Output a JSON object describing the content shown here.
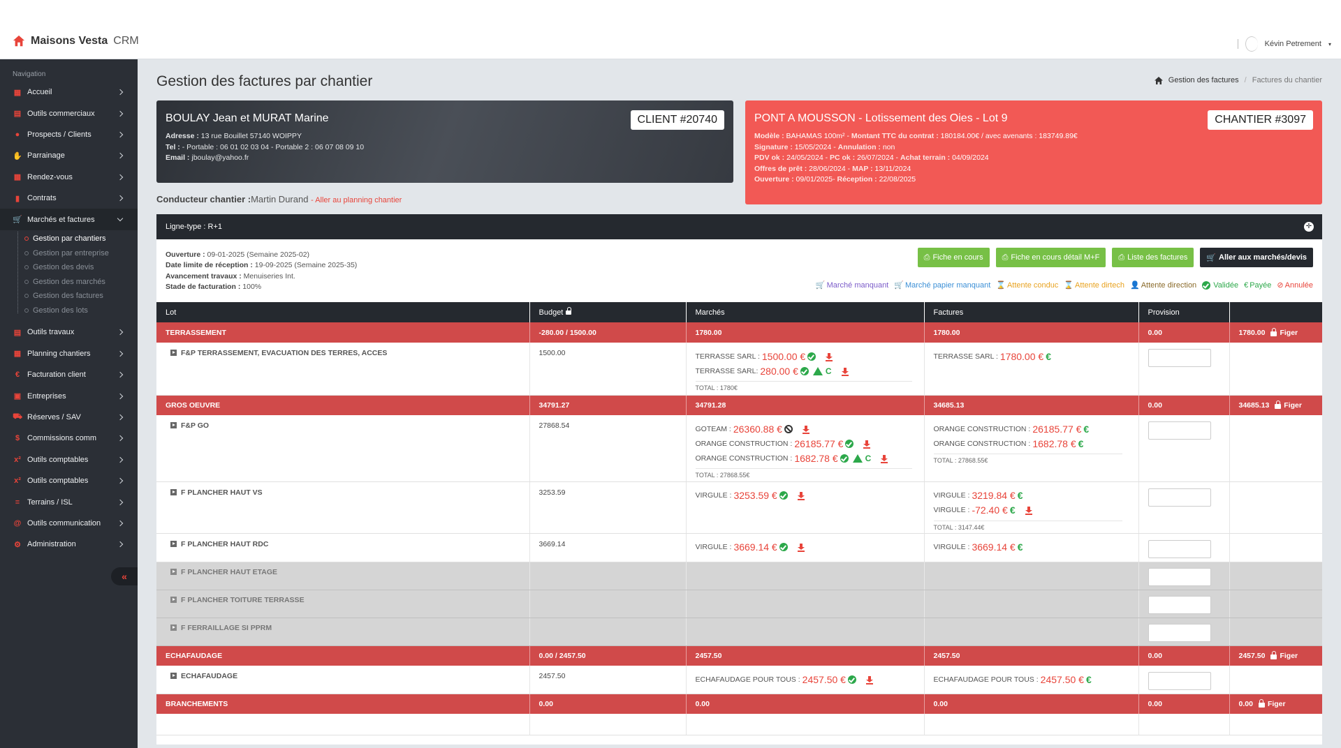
{
  "app": {
    "brand_bold": "Maisons Vesta",
    "brand_light": "CRM",
    "user_name": "Kévin Petrement"
  },
  "sidebar": {
    "heading": "Navigation",
    "items": [
      {
        "label": "Accueil",
        "icon": "grid-icon"
      },
      {
        "label": "Outils commerciaux",
        "icon": "calculator-icon"
      },
      {
        "label": "Prospects / Clients",
        "icon": "user-icon"
      },
      {
        "label": "Parrainage",
        "icon": "handshake-icon"
      },
      {
        "label": "Rendez-vous",
        "icon": "calendar-icon"
      },
      {
        "label": "Contrats",
        "icon": "clipboard-icon"
      },
      {
        "label": "Marchés et factures",
        "icon": "cart-icon"
      },
      {
        "label": "Outils travaux",
        "icon": "calculator-icon"
      },
      {
        "label": "Planning chantiers",
        "icon": "calendar-icon"
      },
      {
        "label": "Facturation client",
        "icon": "euro-icon"
      },
      {
        "label": "Entreprises",
        "icon": "address-book-icon"
      },
      {
        "label": "Réserves / SAV",
        "icon": "truck-icon"
      },
      {
        "label": "Commissions comm",
        "icon": "dollar-icon"
      },
      {
        "label": "Outils comptables",
        "icon": "superscript-icon"
      },
      {
        "label": "Outils comptables",
        "icon": "superscript-icon"
      },
      {
        "label": "Terrains / ISL",
        "icon": "road-icon"
      },
      {
        "label": "Outils communication",
        "icon": "at-icon"
      },
      {
        "label": "Administration",
        "icon": "cogs-icon"
      }
    ],
    "sub_items": [
      "Gestion par chantiers",
      "Gestion par entreprise",
      "Gestion des devis",
      "Gestion des marchés",
      "Gestion des factures",
      "Gestion des lots"
    ]
  },
  "page": {
    "title": "Gestion des factures par chantier",
    "breadcrumb": [
      "Gestion des factures",
      "Factures du chantier"
    ]
  },
  "client": {
    "name": "BOULAY Jean et MURAT Marine",
    "badge": "CLIENT #20740",
    "lines": [
      {
        "label": "Adresse :",
        "value": " 13 rue Bouillet 57140 WOIPPY"
      },
      {
        "label": "Tel :",
        "value": " - Portable : 06 01 02 03 04 - Portable 2 : 06 07 08 09 10"
      },
      {
        "label": "Email :",
        "value": " jboulay@yahoo.fr"
      }
    ]
  },
  "chantier": {
    "name": "PONT A MOUSSON - Lotissement des Oies - Lot 9",
    "badge": "CHANTIER #3097",
    "l1": {
      "a": "Modèle :",
      "av": " BAHAMAS 100m² - ",
      "b": "Montant TTC du contrat :",
      "bv": " 180184.00€ / avec avenants : 183749.89€"
    },
    "l2": {
      "a": "Signature :",
      "av": " 15/05/2024 - ",
      "b": "Annulation :",
      "bv": " non"
    },
    "l3": {
      "a": "PDV ok :",
      "av": " 24/05/2024 - ",
      "b": "PC ok :",
      "bv": " 26/07/2024 - ",
      "c": "Achat terrain :",
      "cv": " 04/09/2024"
    },
    "l4": {
      "a": "Offres de prêt :",
      "av": " 28/06/2024 - ",
      "b": "MAP :",
      "bv": " 13/11/2024"
    },
    "l5": {
      "a": "Ouverture :",
      "av": " 09/01/2025- ",
      "b": "Réception :",
      "bv": " 22/08/2025"
    }
  },
  "conducteur": {
    "label": "Conducteur chantier :",
    "name": "Martin Durand",
    "link": "- Aller au planning chantier"
  },
  "panel": {
    "header": "Ligne-type : R+1",
    "info": [
      {
        "label": "Ouverture :",
        "value": " 09-01-2025 (Semaine 2025-02)"
      },
      {
        "label": "Date limite de réception :",
        "value": " 19-09-2025 (Semaine 2025-35)"
      },
      {
        "label": "Avancement travaux :",
        "value": " Menuiseries Int."
      },
      {
        "label": "Stade de facturation :",
        "value": " 100%"
      }
    ],
    "buttons": [
      "Fiche en cours",
      "Fiche en cours détail M+F",
      "Liste des factures",
      "Aller aux marchés/devis"
    ],
    "legend": [
      {
        "label": "Marché manquant",
        "color": "#7b5bc9"
      },
      {
        "label": "Marché papier manquant",
        "color": "#3b8fd6"
      },
      {
        "label": "Attente conduc",
        "color": "#e8a21f"
      },
      {
        "label": "Attente dirtech",
        "color": "#e8a21f"
      },
      {
        "label": "Attente direction",
        "color": "#8a6a2a"
      },
      {
        "label": "Validée",
        "color": "#2ca84a"
      },
      {
        "label": "Payée",
        "color": "#2ca84a"
      },
      {
        "label": "Annulée",
        "color": "#e8443a"
      }
    ],
    "columns": [
      "Lot",
      "Budget",
      "Marchés",
      "Factures",
      "Provision",
      ""
    ],
    "figer": "Figer",
    "groups": [
      {
        "name": "TERRASSEMENT",
        "budget": "-280.00 / 1500.00",
        "marches": "1780.00",
        "factures": "1780.00",
        "provision": "0.00",
        "total": "1780.00"
      },
      {
        "name": "GROS OEUVRE",
        "budget": "34791.27",
        "marches": "34791.28",
        "factures": "34685.13",
        "provision": "0.00",
        "total": "34685.13"
      },
      {
        "name": "ECHAFAUDAGE",
        "budget": "0.00 / 2457.50",
        "marches": "2457.50",
        "factures": "2457.50",
        "provision": "0.00",
        "total": "2457.50"
      },
      {
        "name": "BRANCHEMENTS",
        "budget": "0.00",
        "marches": "0.00",
        "factures": "0.00",
        "provision": "0.00",
        "total": "0.00"
      }
    ],
    "lines": {
      "terr": {
        "lot": "F&P TERRASSEMENT, EVACUATION DES TERRES, ACCES",
        "budget": "1500.00",
        "m1": {
          "co": "TERRASSE SARL :",
          "amt": "1500.00 €"
        },
        "m2": {
          "co": "TERRASSE SARL:",
          "amt": "280.00 €",
          "flag": "C"
        },
        "mtot": "TOTAL : 1780€",
        "f1": {
          "co": "TERRASSE SARL :",
          "amt": "1780.00 €"
        }
      },
      "fpgo": {
        "lot": "F&P GO",
        "budget": "27868.54",
        "m1": {
          "co": "GOTEAM :",
          "amt": "26360.88 €"
        },
        "m2": {
          "co": "ORANGE CONSTRUCTION :",
          "amt": "26185.77 €"
        },
        "m3": {
          "co": "ORANGE CONSTRUCTION :",
          "amt": "1682.78 €",
          "flag": "C"
        },
        "mtot": "TOTAL : 27868.55€",
        "f1": {
          "co": "ORANGE CONSTRUCTION :",
          "amt": "26185.77 €"
        },
        "f2": {
          "co": "ORANGE CONSTRUCTION :",
          "amt": "1682.78 €"
        },
        "ftot": "TOTAL : 27868.55€"
      },
      "vs": {
        "lot": "F PLANCHER HAUT VS",
        "budget": "3253.59",
        "m1": {
          "co": "VIRGULE :",
          "amt": "3253.59 €"
        },
        "f1": {
          "co": "VIRGULE :",
          "amt": "3219.84 €"
        },
        "f2": {
          "co": "VIRGULE :",
          "amt": "-72.40 €"
        },
        "ftot": "TOTAL : 3147.44€"
      },
      "rdc": {
        "lot": "F PLANCHER HAUT RDC",
        "budget": "3669.14",
        "m1": {
          "co": "VIRGULE :",
          "amt": "3669.14 €"
        },
        "f1": {
          "co": "VIRGULE :",
          "amt": "3669.14 €"
        }
      },
      "gray": [
        "F PLANCHER HAUT ETAGE",
        "F PLANCHER TOITURE TERRASSE",
        "F FERRAILLAGE SI PPRM"
      ],
      "echa": {
        "lot": "ECHAFAUDAGE",
        "budget": "2457.50",
        "m1": {
          "co": "ECHAFAUDAGE POUR TOUS :",
          "amt": "2457.50 €"
        },
        "f1": {
          "co": "ECHAFAUDAGE POUR TOUS :",
          "amt": "2457.50 €"
        }
      }
    }
  }
}
